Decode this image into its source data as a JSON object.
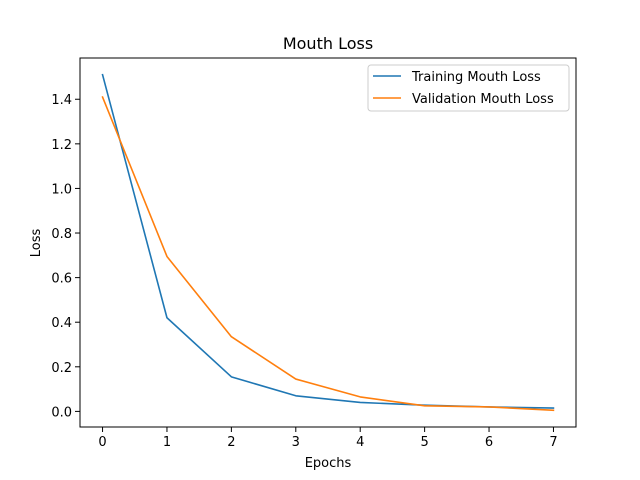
{
  "chart_data": {
    "type": "line",
    "title": "Mouth Loss",
    "xlabel": "Epochs",
    "ylabel": "Loss",
    "xlim": [
      -0.35,
      7.35
    ],
    "ylim": [
      -0.07,
      1.585
    ],
    "xticks": [
      0,
      1,
      2,
      3,
      4,
      5,
      6,
      7
    ],
    "yticks": [
      0.0,
      0.2,
      0.4,
      0.6,
      0.8,
      1.0,
      1.2,
      1.4
    ],
    "ytick_labels": [
      "0.0",
      "0.2",
      "0.4",
      "0.6",
      "0.8",
      "1.0",
      "1.2",
      "1.4"
    ],
    "grid": false,
    "legend_position": "top-right",
    "x": [
      0,
      1,
      2,
      3,
      4,
      5,
      6,
      7
    ],
    "series": [
      {
        "name": "Training Mouth Loss",
        "color": "#1f77b4",
        "values": [
          1.51,
          0.42,
          0.155,
          0.07,
          0.04,
          0.028,
          0.02,
          0.015
        ]
      },
      {
        "name": "Validation Mouth Loss",
        "color": "#ff7f0e",
        "values": [
          1.41,
          0.695,
          0.335,
          0.145,
          0.065,
          0.025,
          0.02,
          0.005
        ]
      }
    ]
  }
}
